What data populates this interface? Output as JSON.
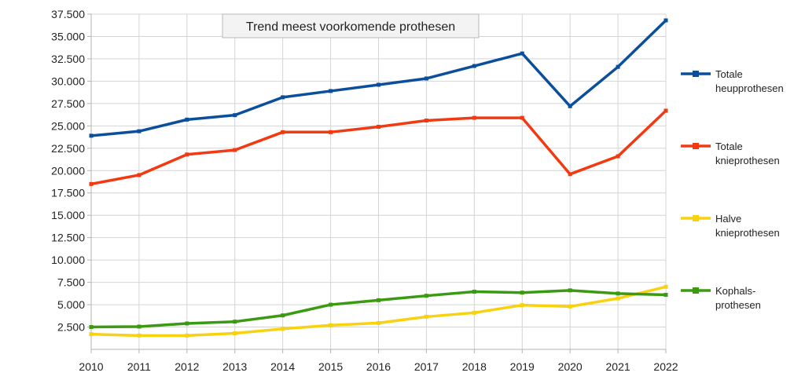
{
  "chart_data": {
    "type": "line",
    "title": "Trend meest voorkomende prothesen",
    "xlabel": "",
    "ylabel": "",
    "categories": [
      "2010",
      "2011",
      "2012",
      "2013",
      "2014",
      "2015",
      "2016",
      "2017",
      "2018",
      "2019",
      "2020",
      "2021",
      "2022"
    ],
    "ylim": [
      0,
      37500
    ],
    "yticks": [
      2500,
      5000,
      7500,
      10000,
      12500,
      15000,
      17500,
      20000,
      22500,
      25000,
      27500,
      30000,
      32500,
      35000,
      37500
    ],
    "ytick_labels": [
      "2.500",
      "5.000",
      "7.500",
      "10.000",
      "12.500",
      "15.000",
      "17.500",
      "20.000",
      "22.500",
      "25.000",
      "27.500",
      "30.000",
      "32.500",
      "35.000",
      "37.500"
    ],
    "grid": true,
    "legend_position": "right",
    "series": [
      {
        "name": "Totale heupprothesen",
        "legend_lines": [
          "Totale",
          "heupprothesen"
        ],
        "color": "#0b4f9c",
        "values": [
          23900,
          24400,
          25700,
          26200,
          28200,
          28900,
          29600,
          30300,
          31700,
          33100,
          27200,
          31600,
          36800
        ]
      },
      {
        "name": "Totale knieprothesen",
        "legend_lines": [
          "Totale",
          "knieprothesen"
        ],
        "color": "#f23a12",
        "values": [
          18500,
          19500,
          21800,
          22300,
          24300,
          24300,
          24900,
          25600,
          25900,
          25900,
          19600,
          21600,
          26700
        ]
      },
      {
        "name": "Halve knieprothesen",
        "legend_lines": [
          "Halve",
          "knieprothesen"
        ],
        "color": "#f8d10f",
        "values": [
          1700,
          1550,
          1550,
          1800,
          2300,
          2700,
          2950,
          3650,
          4100,
          4950,
          4800,
          5700,
          7000
        ]
      },
      {
        "name": "Kophals-prothesen",
        "legend_lines": [
          "Kophals-",
          "prothesen"
        ],
        "color": "#3a9a10",
        "values": [
          2500,
          2550,
          2900,
          3100,
          3800,
          5000,
          5500,
          6000,
          6450,
          6350,
          6600,
          6250,
          6100
        ]
      }
    ]
  }
}
